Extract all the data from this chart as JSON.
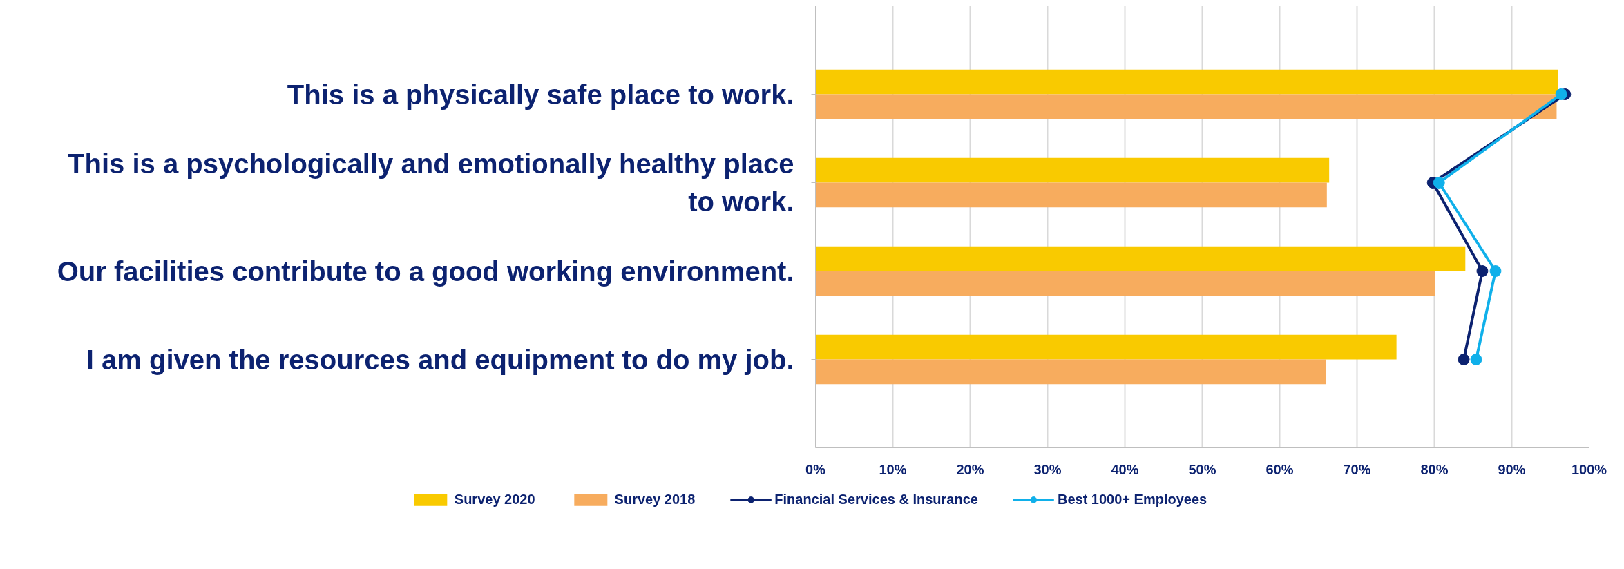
{
  "chart_data": {
    "type": "bar",
    "orientation": "horizontal",
    "categories": [
      "This is a physically safe place to work.",
      "This is a psychologically and emotionally healthy place\nto work.",
      "Our facilities contribute to a good working environment.",
      "I am given the resources and equipment to do my job."
    ],
    "series": [
      {
        "name": "Survey 2020",
        "color": "#f9ca00",
        "values": [
          96.0,
          66.4,
          84.0,
          75.1
        ]
      },
      {
        "name": "Survey 2018",
        "color": "#f7ac5e",
        "values": [
          95.8,
          66.1,
          80.1,
          66.0
        ]
      },
      {
        "name": "Financial Services & Insurance",
        "type": "line",
        "marker": "circle",
        "color": "#0c2270",
        "values": [
          96.9,
          79.8,
          86.2,
          83.8
        ]
      },
      {
        "name": "Best 1000+ Employees",
        "type": "line",
        "marker": "circle",
        "color": "#10b0ea",
        "values": [
          96.4,
          80.6,
          87.9,
          85.4
        ]
      }
    ],
    "xlim": [
      0,
      100
    ],
    "xticks": [
      {
        "value": 0,
        "label": "0%"
      },
      {
        "value": 10,
        "label": "10%"
      },
      {
        "value": 20,
        "label": "20%"
      },
      {
        "value": 30,
        "label": "30%"
      },
      {
        "value": 40,
        "label": "40%"
      },
      {
        "value": 50,
        "label": "50%"
      },
      {
        "value": 60,
        "label": "60%"
      },
      {
        "value": 70,
        "label": "70%"
      },
      {
        "value": 80,
        "label": "80%"
      },
      {
        "value": 90,
        "label": "90%"
      },
      {
        "value": 100,
        "label": "100%"
      }
    ],
    "grid": "x",
    "legend": "bottom"
  }
}
